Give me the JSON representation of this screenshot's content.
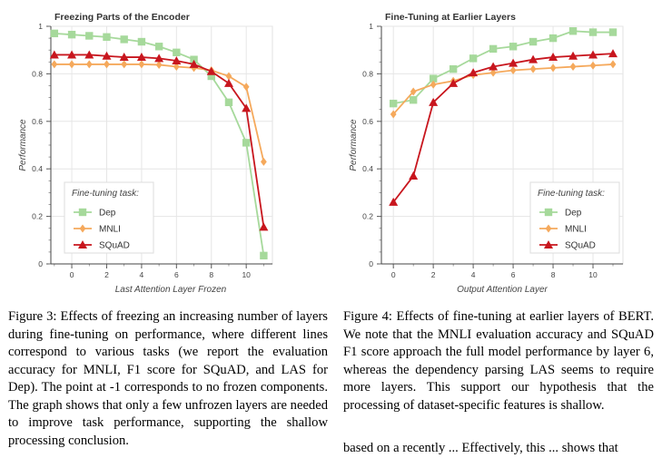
{
  "chart_data": [
    {
      "type": "line",
      "title": "Freezing Parts of the Encoder",
      "xlabel": "Last Attention Layer Frozen",
      "ylabel": "Performance",
      "xlim": [
        -1.2,
        11.5
      ],
      "ylim": [
        0,
        1
      ],
      "xticks": [
        "0",
        "2",
        "4",
        "6",
        "8",
        "10"
      ],
      "yticks": [
        "0",
        "0.2",
        "0.4",
        "0.6",
        "0.8",
        "1"
      ],
      "legend_title": "Fine-tuning task:",
      "legend_position": "bottom-left",
      "x": [
        -1,
        0,
        1,
        2,
        3,
        4,
        5,
        6,
        7,
        8,
        9,
        10,
        11
      ],
      "series": [
        {
          "name": "Dep",
          "color": "#a6d99b",
          "marker": "square",
          "values": [
            0.97,
            0.965,
            0.96,
            0.955,
            0.945,
            0.935,
            0.915,
            0.89,
            0.86,
            0.79,
            0.68,
            0.51,
            0.035
          ]
        },
        {
          "name": "MNLI",
          "color": "#f5a95c",
          "marker": "diamond",
          "values": [
            0.84,
            0.84,
            0.84,
            0.84,
            0.84,
            0.84,
            0.838,
            0.83,
            0.825,
            0.815,
            0.79,
            0.745,
            0.43
          ]
        },
        {
          "name": "SQuAD",
          "color": "#c8161e",
          "marker": "triangle",
          "values": [
            0.88,
            0.88,
            0.88,
            0.875,
            0.87,
            0.87,
            0.865,
            0.855,
            0.84,
            0.81,
            0.76,
            0.655,
            0.155
          ]
        }
      ]
    },
    {
      "type": "line",
      "title": "Fine-Tuning at Earlier Layers",
      "xlabel": "Output Attention Layer",
      "ylabel": "Performance",
      "xlim": [
        -0.6,
        11.5
      ],
      "ylim": [
        0,
        1
      ],
      "xticks": [
        "0",
        "2",
        "4",
        "6",
        "8",
        "10"
      ],
      "yticks": [
        "0",
        "0.2",
        "0.4",
        "0.6",
        "0.8",
        "1"
      ],
      "legend_title": "Fine-tuning task:",
      "legend_position": "bottom-right",
      "x": [
        0,
        1,
        2,
        3,
        4,
        5,
        6,
        7,
        8,
        9,
        10,
        11
      ],
      "series": [
        {
          "name": "Dep",
          "color": "#a6d99b",
          "marker": "square",
          "values": [
            0.675,
            0.69,
            0.78,
            0.82,
            0.865,
            0.905,
            0.915,
            0.935,
            0.95,
            0.98,
            0.975,
            0.975
          ]
        },
        {
          "name": "MNLI",
          "color": "#f5a95c",
          "marker": "diamond",
          "values": [
            0.63,
            0.725,
            0.755,
            0.77,
            0.795,
            0.805,
            0.815,
            0.82,
            0.825,
            0.83,
            0.835,
            0.84
          ]
        },
        {
          "name": "SQuAD",
          "color": "#c8161e",
          "marker": "triangle",
          "values": [
            0.26,
            0.37,
            0.68,
            0.76,
            0.805,
            0.83,
            0.845,
            0.86,
            0.87,
            0.875,
            0.88,
            0.885
          ]
        }
      ]
    }
  ],
  "captions": {
    "figure3": "Figure 3: Effects of freezing an increasing number of layers during fine-tuning on performance, where different lines correspond to various tasks (we report the evaluation accuracy for MNLI, F1 score for SQuAD, and LAS for Dep). The point at -1 corresponds to no frozen components. The graph shows that only a few unfrozen layers are needed to improve task performance, supporting the shallow processing conclusion.",
    "figure4": "Figure 4: Effects of fine-tuning at earlier layers of BERT. We note that the MNLI evaluation accuracy and SQuAD F1 score approach the full model performance by layer 6, whereas the dependency parsing LAS seems to require more layers. This support our hypothesis that the processing of dataset-specific features is shallow.",
    "fragment": "based on a recently ... Effectively, this ... shows that"
  }
}
